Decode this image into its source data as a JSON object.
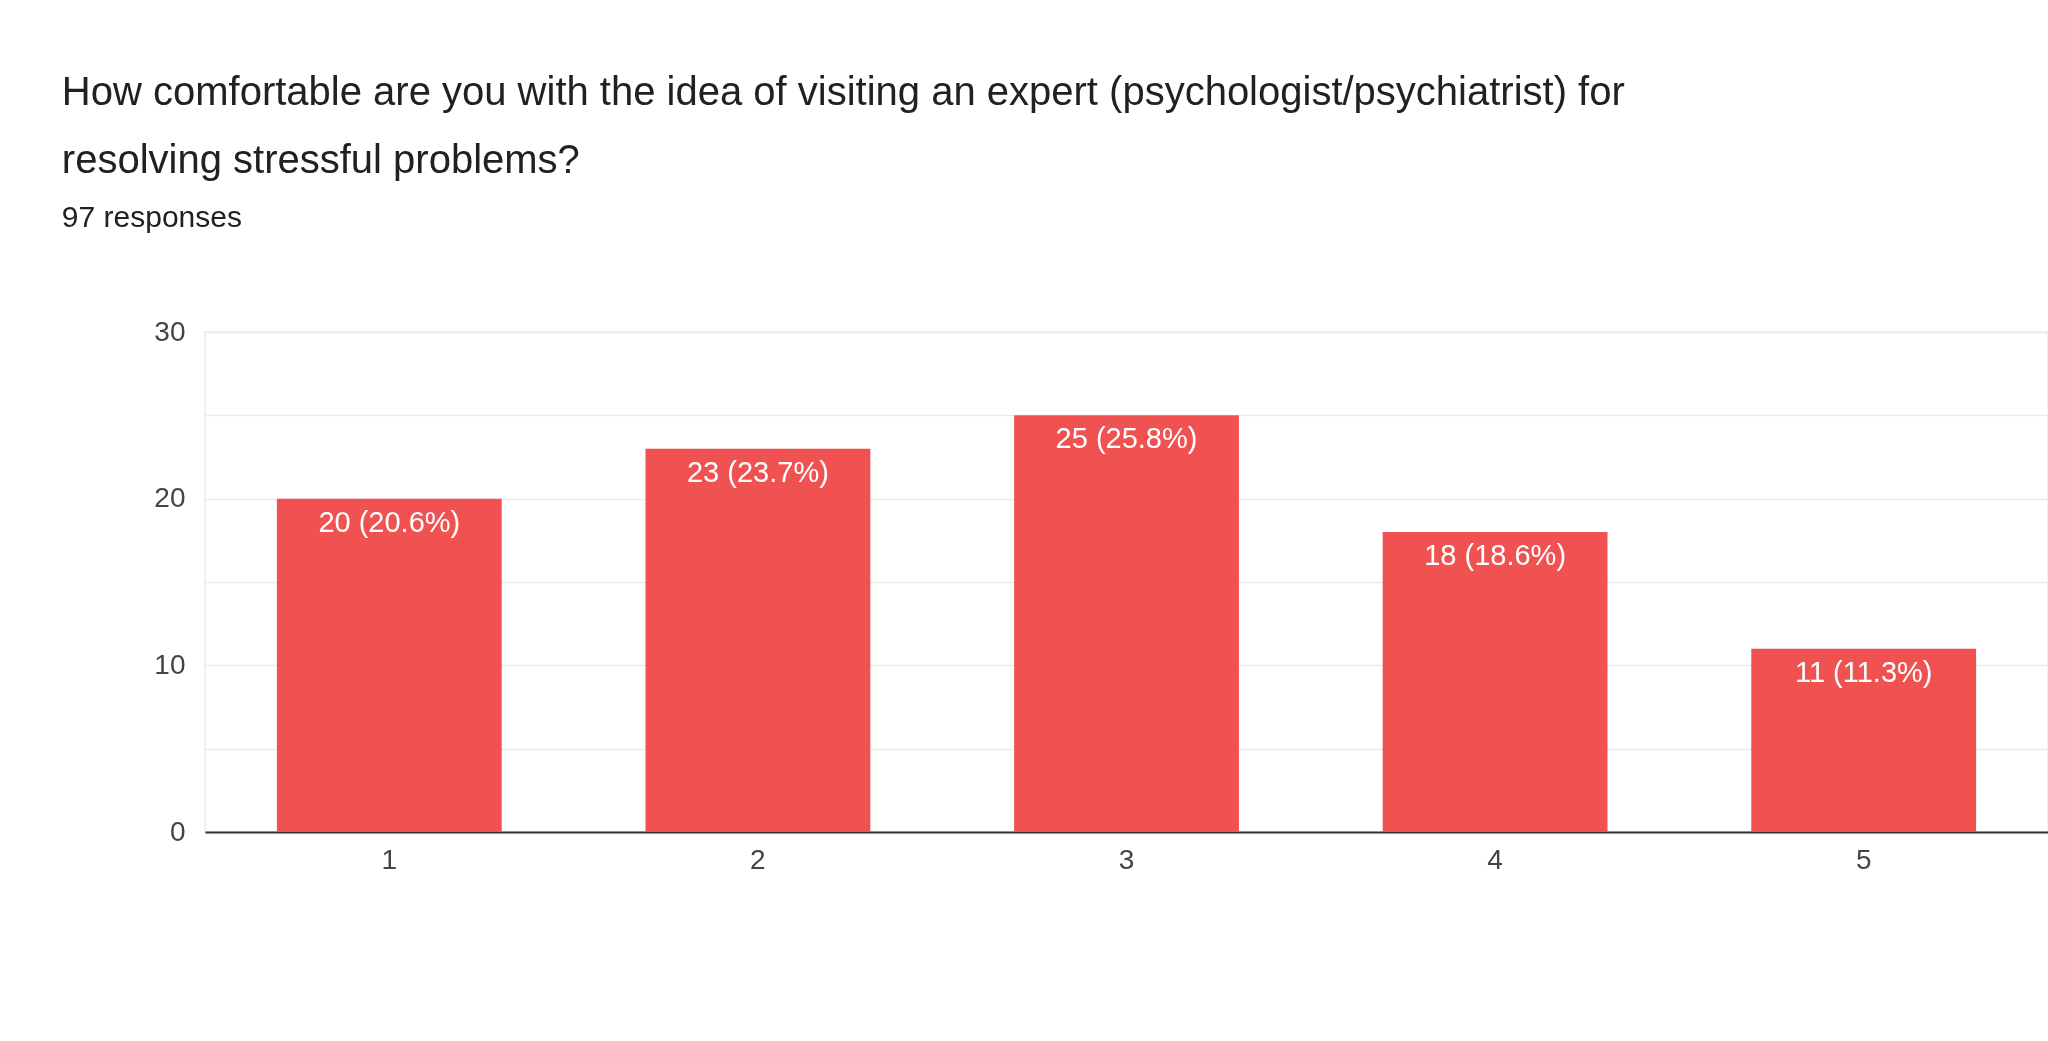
{
  "chart_data": {
    "type": "bar",
    "title": "How comfortable are you with the idea of visiting an expert (psychologist/psychiatrist) for resolving stressful problems?",
    "subtitle": "97 responses",
    "categories": [
      "1",
      "2",
      "3",
      "4",
      "5"
    ],
    "values": [
      20,
      23,
      25,
      18,
      11
    ],
    "value_labels": [
      "20 (20.6%)",
      "23 (23.7%)",
      "25 (25.8%)",
      "18 (18.6%)",
      "11 (11.3%)"
    ],
    "color": "#f05252",
    "ylim": [
      0,
      30
    ],
    "yticks": [
      0,
      {
        "value": 5,
        "label": null
      },
      10,
      {
        "value": 15,
        "label": null
      },
      20,
      {
        "value": 25,
        "label": null
      },
      30
    ],
    "grid": true
  }
}
